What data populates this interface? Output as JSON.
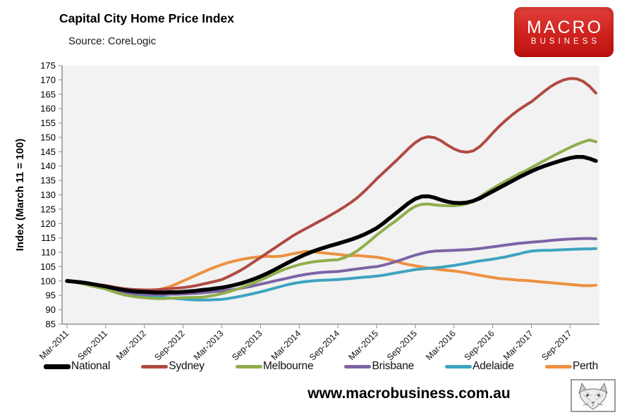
{
  "header": {
    "title": "Capital City Home Price Index",
    "source": "Source: CoreLogic"
  },
  "logo": {
    "line1": "MACRO",
    "line2": "BUSINESS"
  },
  "footer": {
    "url": "www.macrobusiness.com.au"
  },
  "chart_data": {
    "type": "line",
    "title": "Capital City Home Price Index",
    "source": "Source: CoreLogic",
    "ylabel": "Index (March 11 = 100)",
    "ylim": [
      85,
      175
    ],
    "ytick_step": 5,
    "grid": false,
    "legend_position": "bottom",
    "plot_background": "#f2f2f2",
    "x_frequency": "monthly",
    "x_start": "Mar-2011",
    "x_end": "Jan-2018",
    "x_tick_labels": [
      "Mar-2011",
      "Sep-2011",
      "Mar-2012",
      "Sep-2012",
      "Mar-2013",
      "Sep-2013",
      "Mar-2014",
      "Sep-2014",
      "Mar-2015",
      "Sep-2015",
      "Mar-2016",
      "Sep-2016",
      "Mar-2017",
      "Sep-2017"
    ],
    "series": [
      {
        "name": "National",
        "color": "#000000",
        "width": 5.5,
        "values": [
          100.0,
          99.8,
          99.6,
          99.3,
          98.9,
          98.5,
          98.1,
          97.6,
          97.2,
          96.8,
          96.5,
          96.3,
          96.2,
          96.1,
          96.0,
          96.0,
          96.1,
          96.1,
          96.2,
          96.4,
          96.6,
          96.9,
          97.1,
          97.4,
          97.7,
          98.1,
          98.6,
          99.2,
          99.9,
          100.7,
          101.6,
          102.6,
          103.7,
          104.9,
          106.1,
          107.2,
          108.3,
          109.3,
          110.2,
          111.0,
          111.7,
          112.4,
          113.0,
          113.7,
          114.4,
          115.2,
          116.1,
          117.2,
          118.4,
          120.0,
          121.8,
          123.6,
          125.4,
          127.2,
          128.6,
          129.4,
          129.5,
          129.0,
          128.2,
          127.6,
          127.2,
          127.1,
          127.3,
          127.9,
          128.8,
          130.0,
          131.2,
          132.4,
          133.6,
          134.8,
          136.0,
          137.1,
          138.2,
          139.2,
          140.0,
          140.8,
          141.5,
          142.2,
          142.8,
          143.2,
          143.2,
          142.6,
          141.8
        ]
      },
      {
        "name": "Sydney",
        "color": "#b04a42",
        "width": 4,
        "values": [
          100.0,
          99.8,
          99.6,
          99.3,
          99.0,
          98.7,
          98.4,
          98.0,
          97.6,
          97.3,
          97.1,
          97.0,
          96.9,
          96.9,
          97.0,
          97.2,
          97.3,
          97.5,
          97.7,
          98.0,
          98.4,
          98.9,
          99.4,
          99.9,
          100.5,
          101.5,
          102.6,
          103.8,
          105.2,
          106.7,
          108.2,
          109.7,
          111.2,
          112.7,
          114.2,
          115.7,
          117.0,
          118.2,
          119.4,
          120.6,
          121.8,
          123.1,
          124.4,
          125.8,
          127.3,
          129.0,
          131.0,
          133.2,
          135.5,
          137.6,
          139.7,
          141.8,
          144.0,
          146.2,
          148.2,
          149.6,
          150.2,
          149.9,
          148.8,
          147.3,
          146.0,
          145.1,
          144.8,
          145.3,
          146.8,
          149.0,
          151.5,
          153.8,
          155.9,
          157.8,
          159.5,
          161.0,
          162.4,
          164.2,
          166.0,
          167.7,
          169.0,
          170.0,
          170.5,
          170.4,
          169.5,
          167.8,
          165.4
        ]
      },
      {
        "name": "Melbourne",
        "color": "#8fae4c",
        "width": 4,
        "values": [
          100.0,
          99.7,
          99.2,
          98.7,
          98.2,
          97.7,
          97.2,
          96.4,
          95.7,
          95.1,
          94.7,
          94.4,
          94.2,
          94.0,
          93.9,
          93.9,
          94.0,
          94.1,
          94.2,
          94.3,
          94.3,
          94.4,
          94.7,
          95.1,
          95.6,
          96.2,
          96.9,
          97.7,
          98.5,
          99.4,
          100.3,
          101.3,
          102.4,
          103.4,
          104.3,
          105.0,
          105.7,
          106.2,
          106.6,
          106.9,
          107.1,
          107.3,
          107.4,
          108.1,
          109.2,
          110.5,
          112.2,
          114.0,
          116.0,
          117.7,
          119.4,
          121.0,
          122.8,
          124.6,
          126.0,
          126.7,
          126.8,
          126.5,
          126.3,
          126.2,
          126.2,
          126.4,
          126.9,
          127.7,
          129.3,
          130.8,
          132.2,
          133.5,
          134.8,
          136.0,
          137.2,
          138.3,
          139.5,
          140.7,
          141.9,
          143.1,
          144.3,
          145.4,
          146.5,
          147.5,
          148.4,
          149.1,
          148.5
        ]
      },
      {
        "name": "Brisbane",
        "color": "#7d63a5",
        "width": 4,
        "values": [
          100.0,
          99.7,
          99.3,
          98.9,
          98.4,
          97.9,
          97.4,
          96.9,
          96.4,
          96.0,
          95.7,
          95.5,
          95.4,
          95.3,
          95.3,
          95.3,
          95.4,
          95.4,
          95.5,
          95.6,
          95.7,
          95.9,
          96.1,
          96.3,
          96.5,
          96.8,
          97.1,
          97.5,
          97.9,
          98.4,
          98.9,
          99.4,
          99.9,
          100.4,
          100.9,
          101.4,
          101.9,
          102.3,
          102.6,
          102.9,
          103.1,
          103.2,
          103.3,
          103.6,
          103.9,
          104.2,
          104.5,
          104.8,
          105.0,
          105.5,
          106.1,
          106.8,
          107.5,
          108.3,
          109.0,
          109.6,
          110.1,
          110.4,
          110.5,
          110.6,
          110.7,
          110.8,
          110.9,
          111.1,
          111.3,
          111.6,
          111.9,
          112.2,
          112.5,
          112.8,
          113.1,
          113.3,
          113.5,
          113.7,
          113.9,
          114.1,
          114.3,
          114.5,
          114.6,
          114.7,
          114.8,
          114.8,
          114.7
        ]
      },
      {
        "name": "Adelaide",
        "color": "#3da4bf",
        "width": 4,
        "values": [
          100.0,
          99.8,
          99.5,
          99.1,
          98.7,
          98.3,
          97.8,
          97.2,
          96.6,
          96.1,
          95.6,
          95.2,
          94.9,
          94.7,
          94.5,
          94.3,
          94.1,
          93.9,
          93.7,
          93.5,
          93.4,
          93.4,
          93.4,
          93.5,
          93.6,
          93.9,
          94.3,
          94.7,
          95.2,
          95.7,
          96.2,
          96.8,
          97.4,
          98.0,
          98.6,
          99.1,
          99.5,
          99.8,
          100.0,
          100.2,
          100.3,
          100.4,
          100.5,
          100.7,
          100.9,
          101.1,
          101.3,
          101.5,
          101.7,
          102.0,
          102.4,
          102.8,
          103.2,
          103.6,
          104.0,
          104.2,
          104.4,
          104.6,
          104.8,
          105.1,
          105.4,
          105.8,
          106.2,
          106.6,
          107.0,
          107.3,
          107.6,
          108.0,
          108.4,
          108.9,
          109.4,
          110.0,
          110.4,
          110.6,
          110.7,
          110.7,
          110.8,
          110.9,
          111.0,
          111.1,
          111.2,
          111.2,
          111.3
        ]
      },
      {
        "name": "Perth",
        "color": "#ec9140",
        "width": 4,
        "values": [
          100.0,
          99.7,
          99.4,
          99.0,
          98.5,
          98.0,
          97.5,
          97.1,
          96.8,
          96.6,
          96.5,
          96.4,
          96.4,
          96.6,
          96.9,
          97.4,
          98.1,
          99.0,
          100.0,
          101.0,
          102.0,
          103.0,
          104.0,
          104.9,
          105.7,
          106.4,
          107.0,
          107.5,
          107.9,
          108.2,
          108.5,
          108.6,
          108.5,
          108.6,
          109.0,
          109.5,
          109.9,
          110.3,
          110.2,
          110.0,
          109.7,
          109.5,
          109.3,
          109.0,
          108.8,
          108.9,
          108.7,
          108.5,
          108.3,
          107.9,
          107.4,
          106.8,
          106.2,
          105.7,
          105.3,
          104.9,
          104.5,
          104.2,
          103.9,
          103.7,
          103.5,
          103.2,
          102.8,
          102.4,
          102.0,
          101.6,
          101.2,
          100.9,
          100.7,
          100.5,
          100.3,
          100.2,
          100.0,
          99.8,
          99.6,
          99.4,
          99.2,
          99.0,
          98.8,
          98.6,
          98.4,
          98.4,
          98.5
        ]
      }
    ]
  }
}
